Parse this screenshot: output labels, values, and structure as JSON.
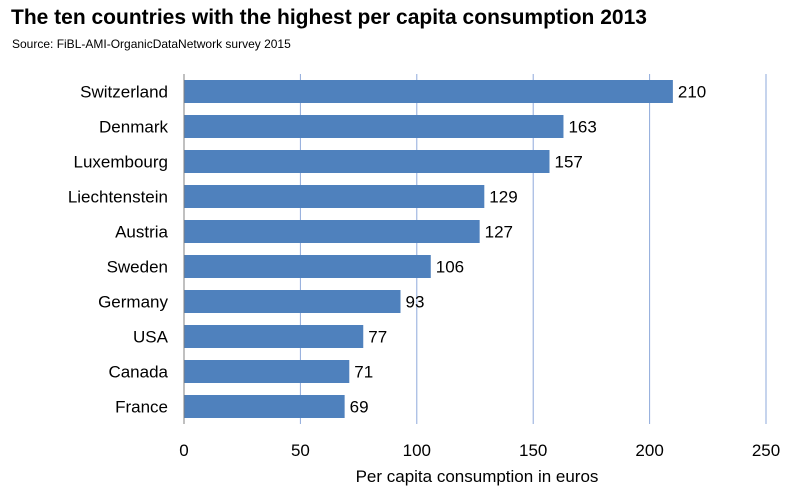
{
  "chart_data": {
    "type": "bar",
    "orientation": "horizontal",
    "title": "The ten countries with the highest per capita consumption 2013",
    "subtitle": "Source: FiBL-AMI-OrganicDataNetwork survey 2015",
    "xlabel": "Per capita consumption in euros",
    "ylabel": "",
    "categories": [
      "Switzerland",
      "Denmark",
      "Luxembourg",
      "Liechtenstein",
      "Austria",
      "Sweden",
      "Germany",
      "USA",
      "Canada",
      "France"
    ],
    "values": [
      210,
      163,
      157,
      129,
      127,
      106,
      93,
      77,
      71,
      69
    ],
    "xlim": [
      0,
      250
    ],
    "xticks": [
      "0",
      "50",
      "100",
      "150",
      "200",
      "250"
    ],
    "grid": "vertical",
    "legend": "none",
    "bar_color": "#4f81bd",
    "grid_color": "#8ea9db"
  }
}
